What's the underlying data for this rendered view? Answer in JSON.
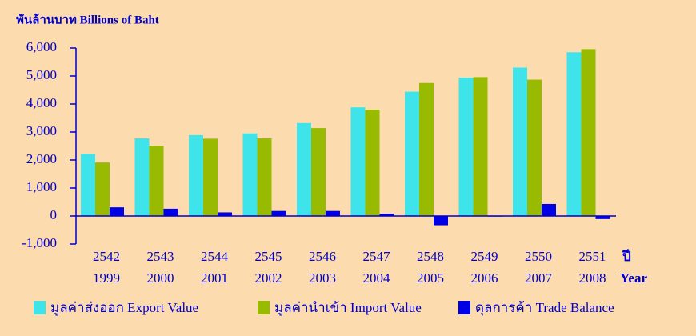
{
  "chart_data": {
    "type": "bar",
    "ylabel": "พันล้านบาท  Billions of Baht",
    "xlabel": [
      "ปี",
      "Year"
    ],
    "categories": [
      [
        "2542",
        "1999"
      ],
      [
        "2543",
        "2000"
      ],
      [
        "2544",
        "2001"
      ],
      [
        "2545",
        "2002"
      ],
      [
        "2546",
        "2003"
      ],
      [
        "2547",
        "2004"
      ],
      [
        "2548",
        "2005"
      ],
      [
        "2549",
        "2006"
      ],
      [
        "2550",
        "2007"
      ],
      [
        "2551",
        "2008"
      ]
    ],
    "series": [
      {
        "name": "มูลค่าส่งออก Export Value",
        "color": "#3fe3ea",
        "values": [
          2220,
          2770,
          2890,
          2950,
          3320,
          3880,
          4440,
          4940,
          5300,
          5850
        ]
      },
      {
        "name": "มูลค่านำเข้า Import Value",
        "color": "#98ba00",
        "values": [
          1910,
          2510,
          2760,
          2770,
          3140,
          3800,
          4750,
          4960,
          4870,
          5960
        ]
      },
      {
        "name": "ดุลการค้า Trade Balance",
        "color": "#0000e6",
        "values": [
          310,
          260,
          130,
          180,
          180,
          80,
          -330,
          -20,
          430,
          -110
        ]
      }
    ],
    "ylim": [
      -1000,
      6000
    ],
    "yticks": [
      {
        "value": -1000,
        "label": "-1,000"
      },
      0,
      {
        "value": 1000,
        "label": "1,000"
      },
      {
        "value": 2000,
        "label": "2,000"
      },
      {
        "value": 3000,
        "label": "3,000"
      },
      {
        "value": 4000,
        "label": "4,000"
      },
      {
        "value": 5000,
        "label": "5,000"
      },
      {
        "value": 6000,
        "label": "6,000"
      }
    ],
    "legend": "bottom"
  }
}
